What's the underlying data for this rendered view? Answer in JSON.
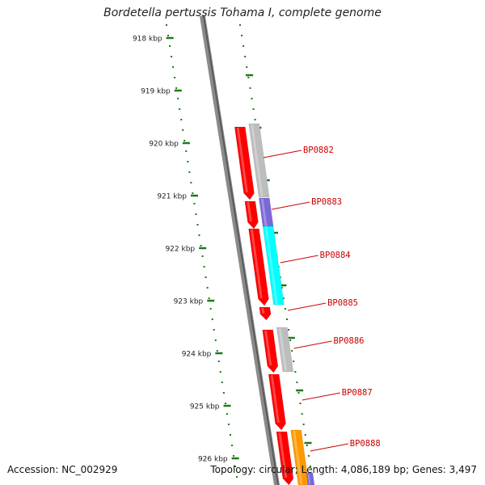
{
  "title": "Bordetella pertussis Tohama I, complete genome",
  "footer": {
    "accession": "Accession: NC_002929",
    "summary": "Topology: circular; Length: 4,086,189 bp; Genes: 3,497"
  },
  "colors": {
    "ruler_tick": "#1a7a1a",
    "backbone": "#8a8a8a",
    "gene_label": "#cc0000",
    "forward_gene": "#ff0000",
    "gray_feature": "#bdbdbd",
    "purple_feature": "#7a68d8",
    "cyan_feature": "#00ffff",
    "orange_feature": "#ff9900"
  },
  "ruler_labels": [
    "918 kbp",
    "919 kbp",
    "920 kbp",
    "921 kbp",
    "922 kbp",
    "923 kbp",
    "924 kbp",
    "925 kbp",
    "926 kbp"
  ],
  "genes": [
    {
      "label": "BP0882",
      "kind": "forward",
      "color": "#ff0000",
      "companion_color": "#bdbdbd"
    },
    {
      "label": "BP0883",
      "kind": "forward",
      "color": "#ff0000",
      "companion_color": "#7a68d8"
    },
    {
      "label": "BP0884",
      "kind": "forward",
      "color": "#ff0000",
      "companion_color": "#00ffff"
    },
    {
      "label": "BP0885",
      "kind": "forward",
      "color": "#ff0000",
      "companion_color": ""
    },
    {
      "label": "BP0886",
      "kind": "forward",
      "color": "#ff0000",
      "companion_color": "#bdbdbd"
    },
    {
      "label": "BP0887",
      "kind": "forward",
      "color": "#ff0000",
      "companion_color": ""
    },
    {
      "label": "BP0888",
      "kind": "forward",
      "color": "#ff0000",
      "companion_color": "#ff9900"
    }
  ]
}
